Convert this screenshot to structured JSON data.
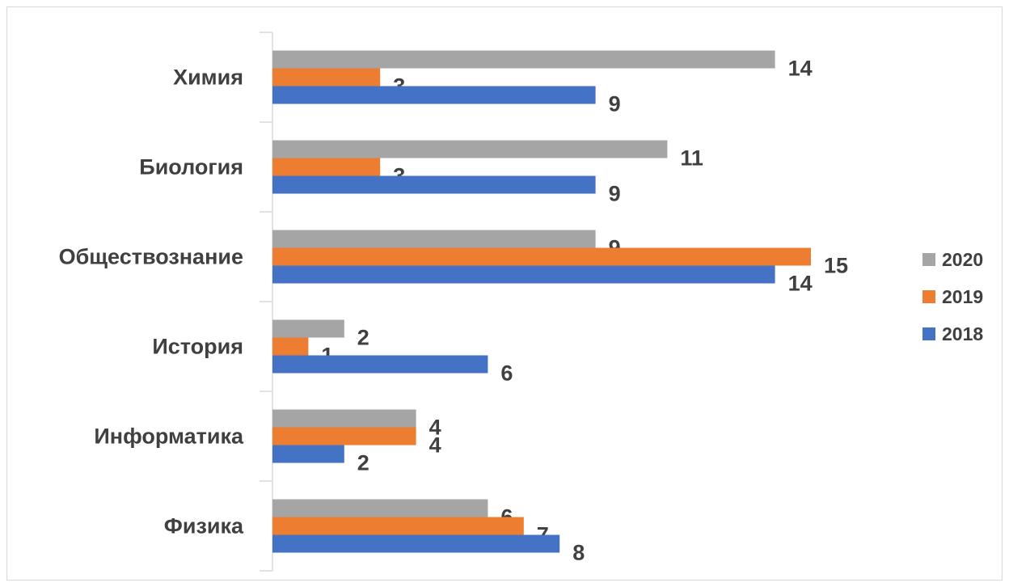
{
  "chart_data": {
    "type": "bar",
    "orientation": "horizontal",
    "categories": [
      "Химия",
      "Биология ",
      "Обществознание",
      "История ",
      "Информатика",
      "Физика"
    ],
    "series": [
      {
        "name": "2020",
        "color": "#a5a5a5",
        "values": [
          14,
          11,
          9,
          2,
          4,
          6
        ]
      },
      {
        "name": "2019",
        "color": "#ed7d31",
        "values": [
          3,
          3,
          15,
          1,
          4,
          7
        ]
      },
      {
        "name": "2018",
        "color": "#4472c4",
        "values": [
          9,
          9,
          14,
          6,
          2,
          8
        ]
      }
    ],
    "title": "",
    "xlabel": "",
    "ylabel": "",
    "xlim": [
      0,
      15
    ],
    "grid": false,
    "data_labels": true,
    "legend_position": "right"
  }
}
